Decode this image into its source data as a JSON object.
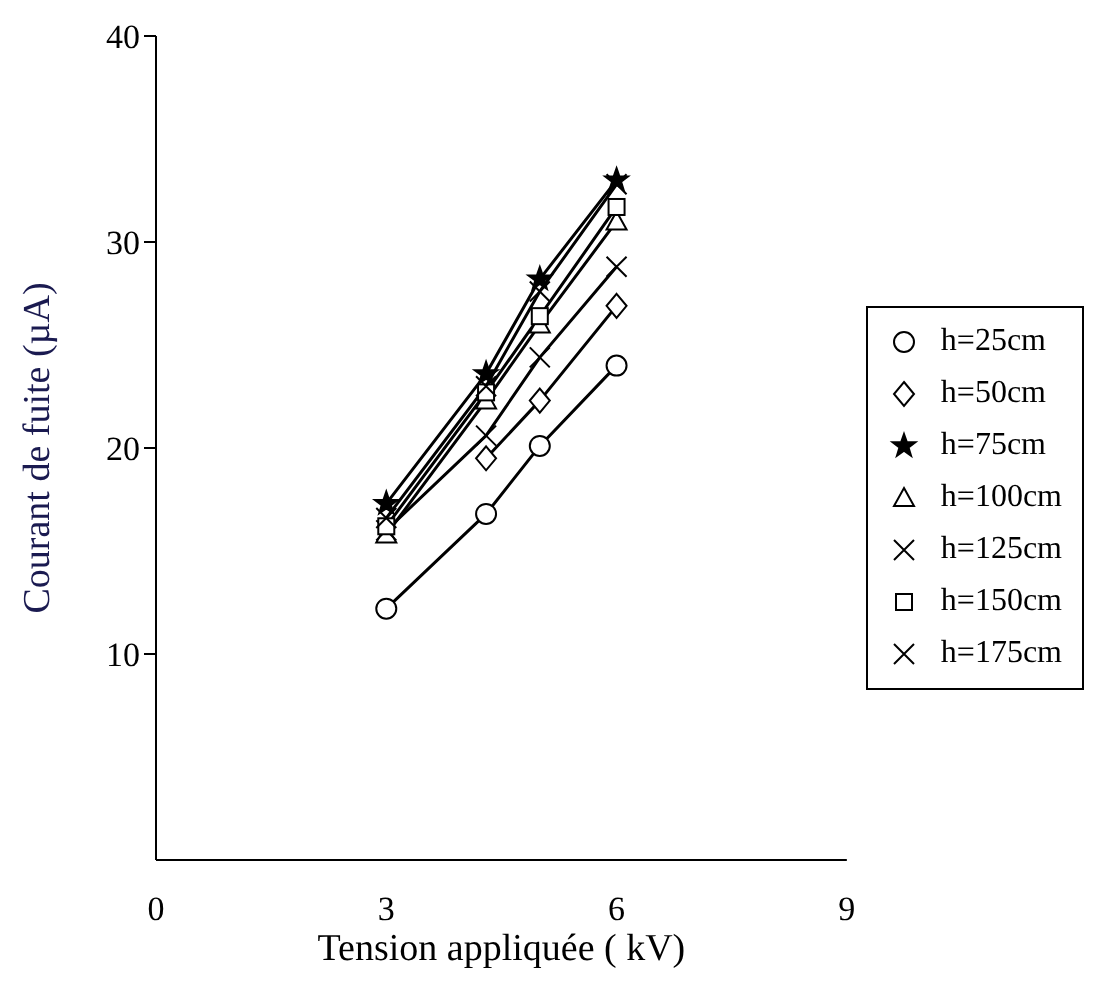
{
  "chart_data": {
    "type": "line",
    "xlabel": "Tension appliquée ( kV)",
    "ylabel": "Courant de fuite (µA)",
    "x": [
      3,
      4.3,
      5,
      6
    ],
    "xlim": [
      0,
      9
    ],
    "xticks": [
      0,
      3,
      6,
      9
    ],
    "ylim": [
      0,
      40
    ],
    "yticks": [
      10,
      20,
      30,
      40
    ],
    "legend": "right",
    "grid": false,
    "series": [
      {
        "name": "h=25cm",
        "color": "#000000",
        "marker": "circle",
        "values": [
          12.2,
          16.8,
          20.1,
          24.0
        ]
      },
      {
        "name": "h=50cm",
        "color": "#000000",
        "marker": "diamond",
        "values": [
          null,
          19.5,
          22.3,
          26.9
        ]
      },
      {
        "name": "h=75cm",
        "color": "#000000",
        "marker": "star",
        "values": [
          17.3,
          23.6,
          28.2,
          33.0
        ]
      },
      {
        "name": "h=100cm",
        "color": "#000000",
        "marker": "triangle",
        "values": [
          15.8,
          22.3,
          26.0,
          31.0
        ]
      },
      {
        "name": "h=125cm",
        "color": "#000000",
        "marker": "cross",
        "values": [
          16.0,
          20.6,
          24.4,
          28.8
        ]
      },
      {
        "name": "h=150cm",
        "color": "#000000",
        "marker": "square",
        "values": [
          16.2,
          22.7,
          26.4,
          31.7
        ]
      },
      {
        "name": "h=175cm",
        "color": "#000000",
        "marker": "cross",
        "values": [
          16.6,
          23.0,
          27.6,
          32.8
        ]
      }
    ]
  }
}
